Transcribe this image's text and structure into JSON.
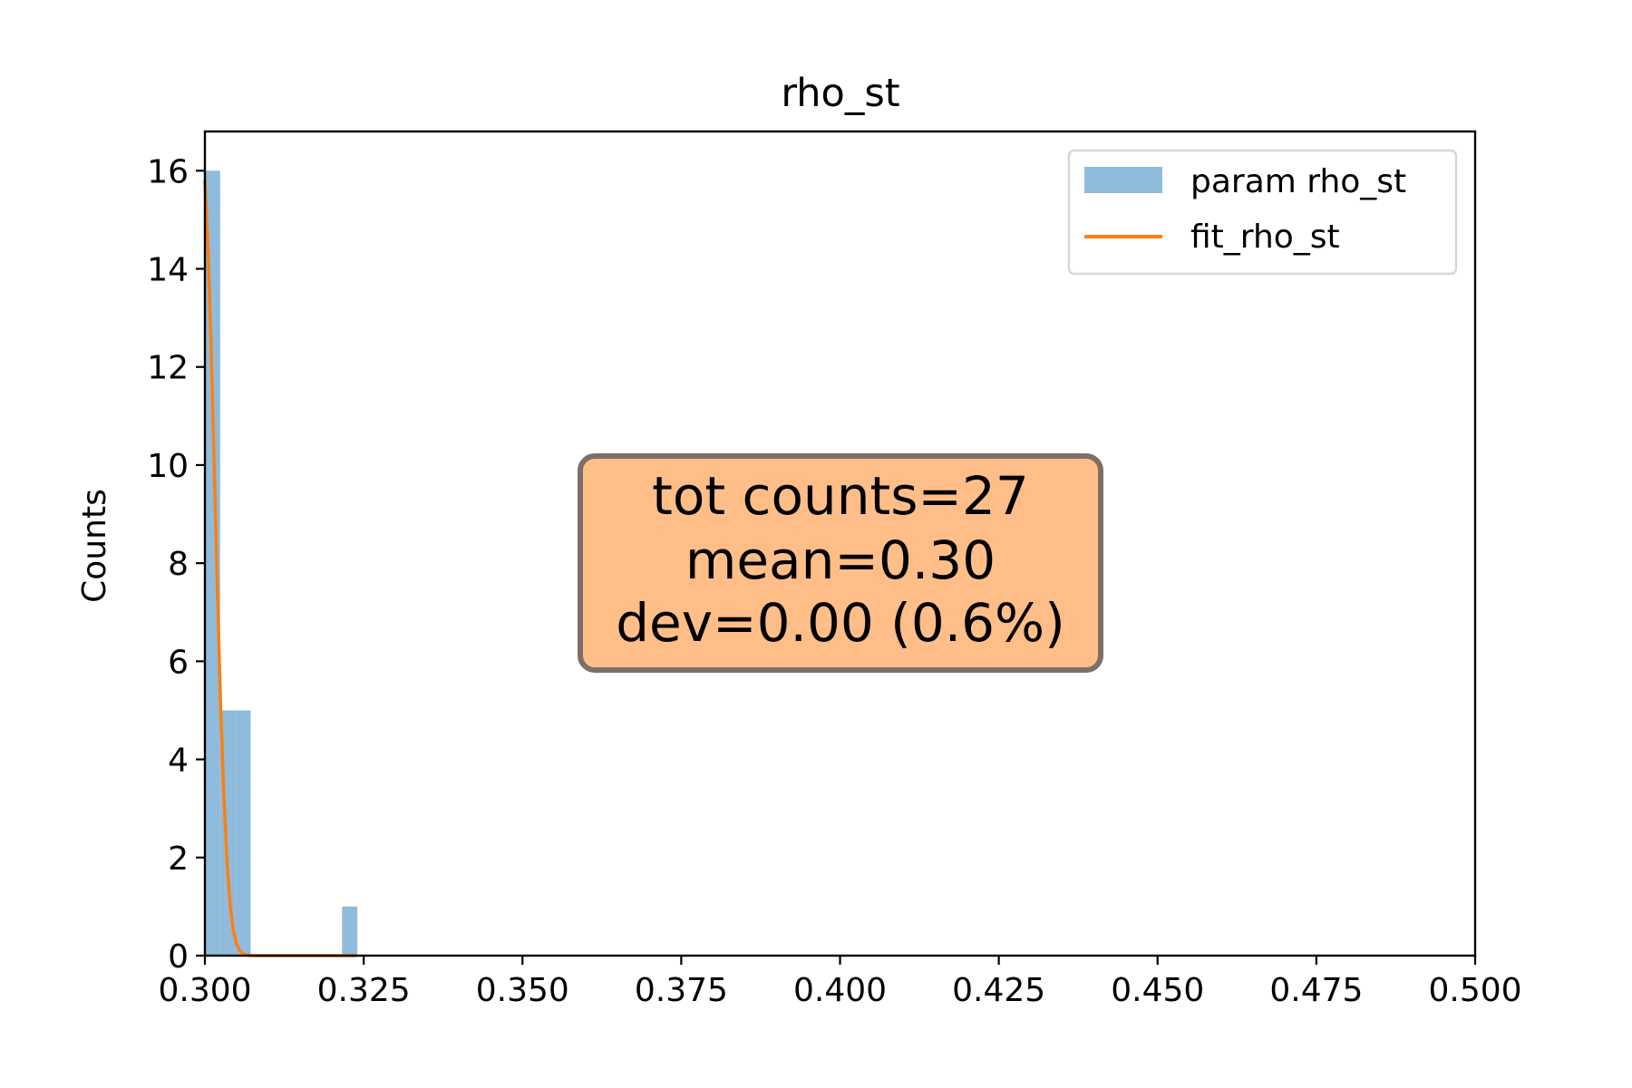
{
  "chart_data": {
    "type": "bar",
    "title": "rho_st",
    "xlabel": "",
    "ylabel": "Counts",
    "xlim": [
      0.3,
      0.5
    ],
    "ylim": [
      0,
      16.8
    ],
    "xticks": [
      "0.300",
      "0.325",
      "0.350",
      "0.375",
      "0.400",
      "0.425",
      "0.450",
      "0.475",
      "0.500"
    ],
    "yticks": [
      "0",
      "2",
      "4",
      "6",
      "8",
      "10",
      "12",
      "14",
      "16"
    ],
    "bin_width": 0.0024,
    "bins": [
      {
        "x0": 0.3,
        "count": 16
      },
      {
        "x0": 0.3024,
        "count": 5
      },
      {
        "x0": 0.3048,
        "count": 5
      },
      {
        "x0": 0.3072,
        "count": 0
      },
      {
        "x0": 0.3096,
        "count": 0
      },
      {
        "x0": 0.312,
        "count": 0
      },
      {
        "x0": 0.3144,
        "count": 0
      },
      {
        "x0": 0.3168,
        "count": 0
      },
      {
        "x0": 0.3192,
        "count": 0
      },
      {
        "x0": 0.3216,
        "count": 1
      }
    ],
    "series": [
      {
        "name": "param rho_st",
        "kind": "histogram",
        "color": "#8fbbdc"
      },
      {
        "name": "fit_rho_st",
        "kind": "line",
        "color": "#ff7f0e",
        "x": [
          0.3,
          0.3005,
          0.301,
          0.3015,
          0.302,
          0.3025,
          0.303,
          0.3035,
          0.304,
          0.3045,
          0.305,
          0.3055,
          0.306,
          0.3065,
          0.307,
          0.308,
          0.31,
          0.315,
          0.32,
          0.324
        ],
        "y": [
          15.8,
          14.4,
          12.3,
          9.8,
          7.3,
          5.0,
          3.2,
          1.9,
          1.0,
          0.5,
          0.23,
          0.1,
          0.04,
          0.015,
          0.005,
          0.0,
          0.0,
          0.0,
          0.0,
          0.0
        ]
      }
    ],
    "legend_position": "top-right",
    "grid": false,
    "annotation": {
      "lines": [
        "tot counts=27",
        "mean=0.30",
        "dev=0.00 (0.6%)"
      ],
      "background": "#ffbe88",
      "border": "#7a7069"
    }
  }
}
